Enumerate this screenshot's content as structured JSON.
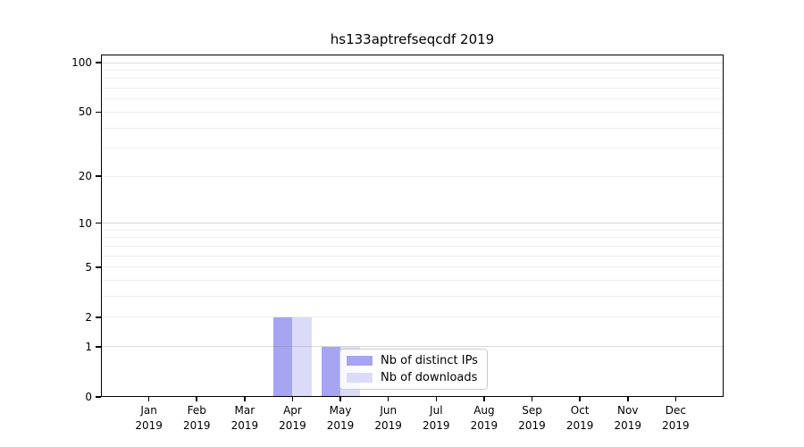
{
  "chart_data": {
    "type": "bar",
    "title": "hs133aptrefseqcdf 2019",
    "categories": [
      {
        "month": "Jan",
        "year": "2019"
      },
      {
        "month": "Feb",
        "year": "2019"
      },
      {
        "month": "Mar",
        "year": "2019"
      },
      {
        "month": "Apr",
        "year": "2019"
      },
      {
        "month": "May",
        "year": "2019"
      },
      {
        "month": "Jun",
        "year": "2019"
      },
      {
        "month": "Jul",
        "year": "2019"
      },
      {
        "month": "Aug",
        "year": "2019"
      },
      {
        "month": "Sep",
        "year": "2019"
      },
      {
        "month": "Oct",
        "year": "2019"
      },
      {
        "month": "Nov",
        "year": "2019"
      },
      {
        "month": "Dec",
        "year": "2019"
      }
    ],
    "series": [
      {
        "name": "Nb of distinct IPs",
        "color": "#a5a5f2",
        "values": [
          0,
          0,
          0,
          2,
          1,
          0,
          0,
          0,
          0,
          0,
          0,
          0
        ]
      },
      {
        "name": "Nb of downloads",
        "color": "#dbdbf9",
        "values": [
          0,
          0,
          0,
          2,
          1,
          0,
          0,
          0,
          0,
          0,
          0,
          0
        ]
      }
    ],
    "xlabel": "",
    "ylabel": "",
    "y_scale": "log1p",
    "ylim": [
      0,
      112
    ],
    "y_tick_labels": [
      0,
      1,
      2,
      5,
      10,
      20,
      50,
      100
    ],
    "y_major_gridlines": [
      1,
      10,
      100
    ],
    "y_minor_gridlines": [
      2,
      3,
      4,
      5,
      6,
      7,
      8,
      9,
      20,
      30,
      40,
      50,
      60,
      70,
      80,
      90
    ],
    "grid": "horizontal",
    "legend_position": "inside lower-center"
  }
}
